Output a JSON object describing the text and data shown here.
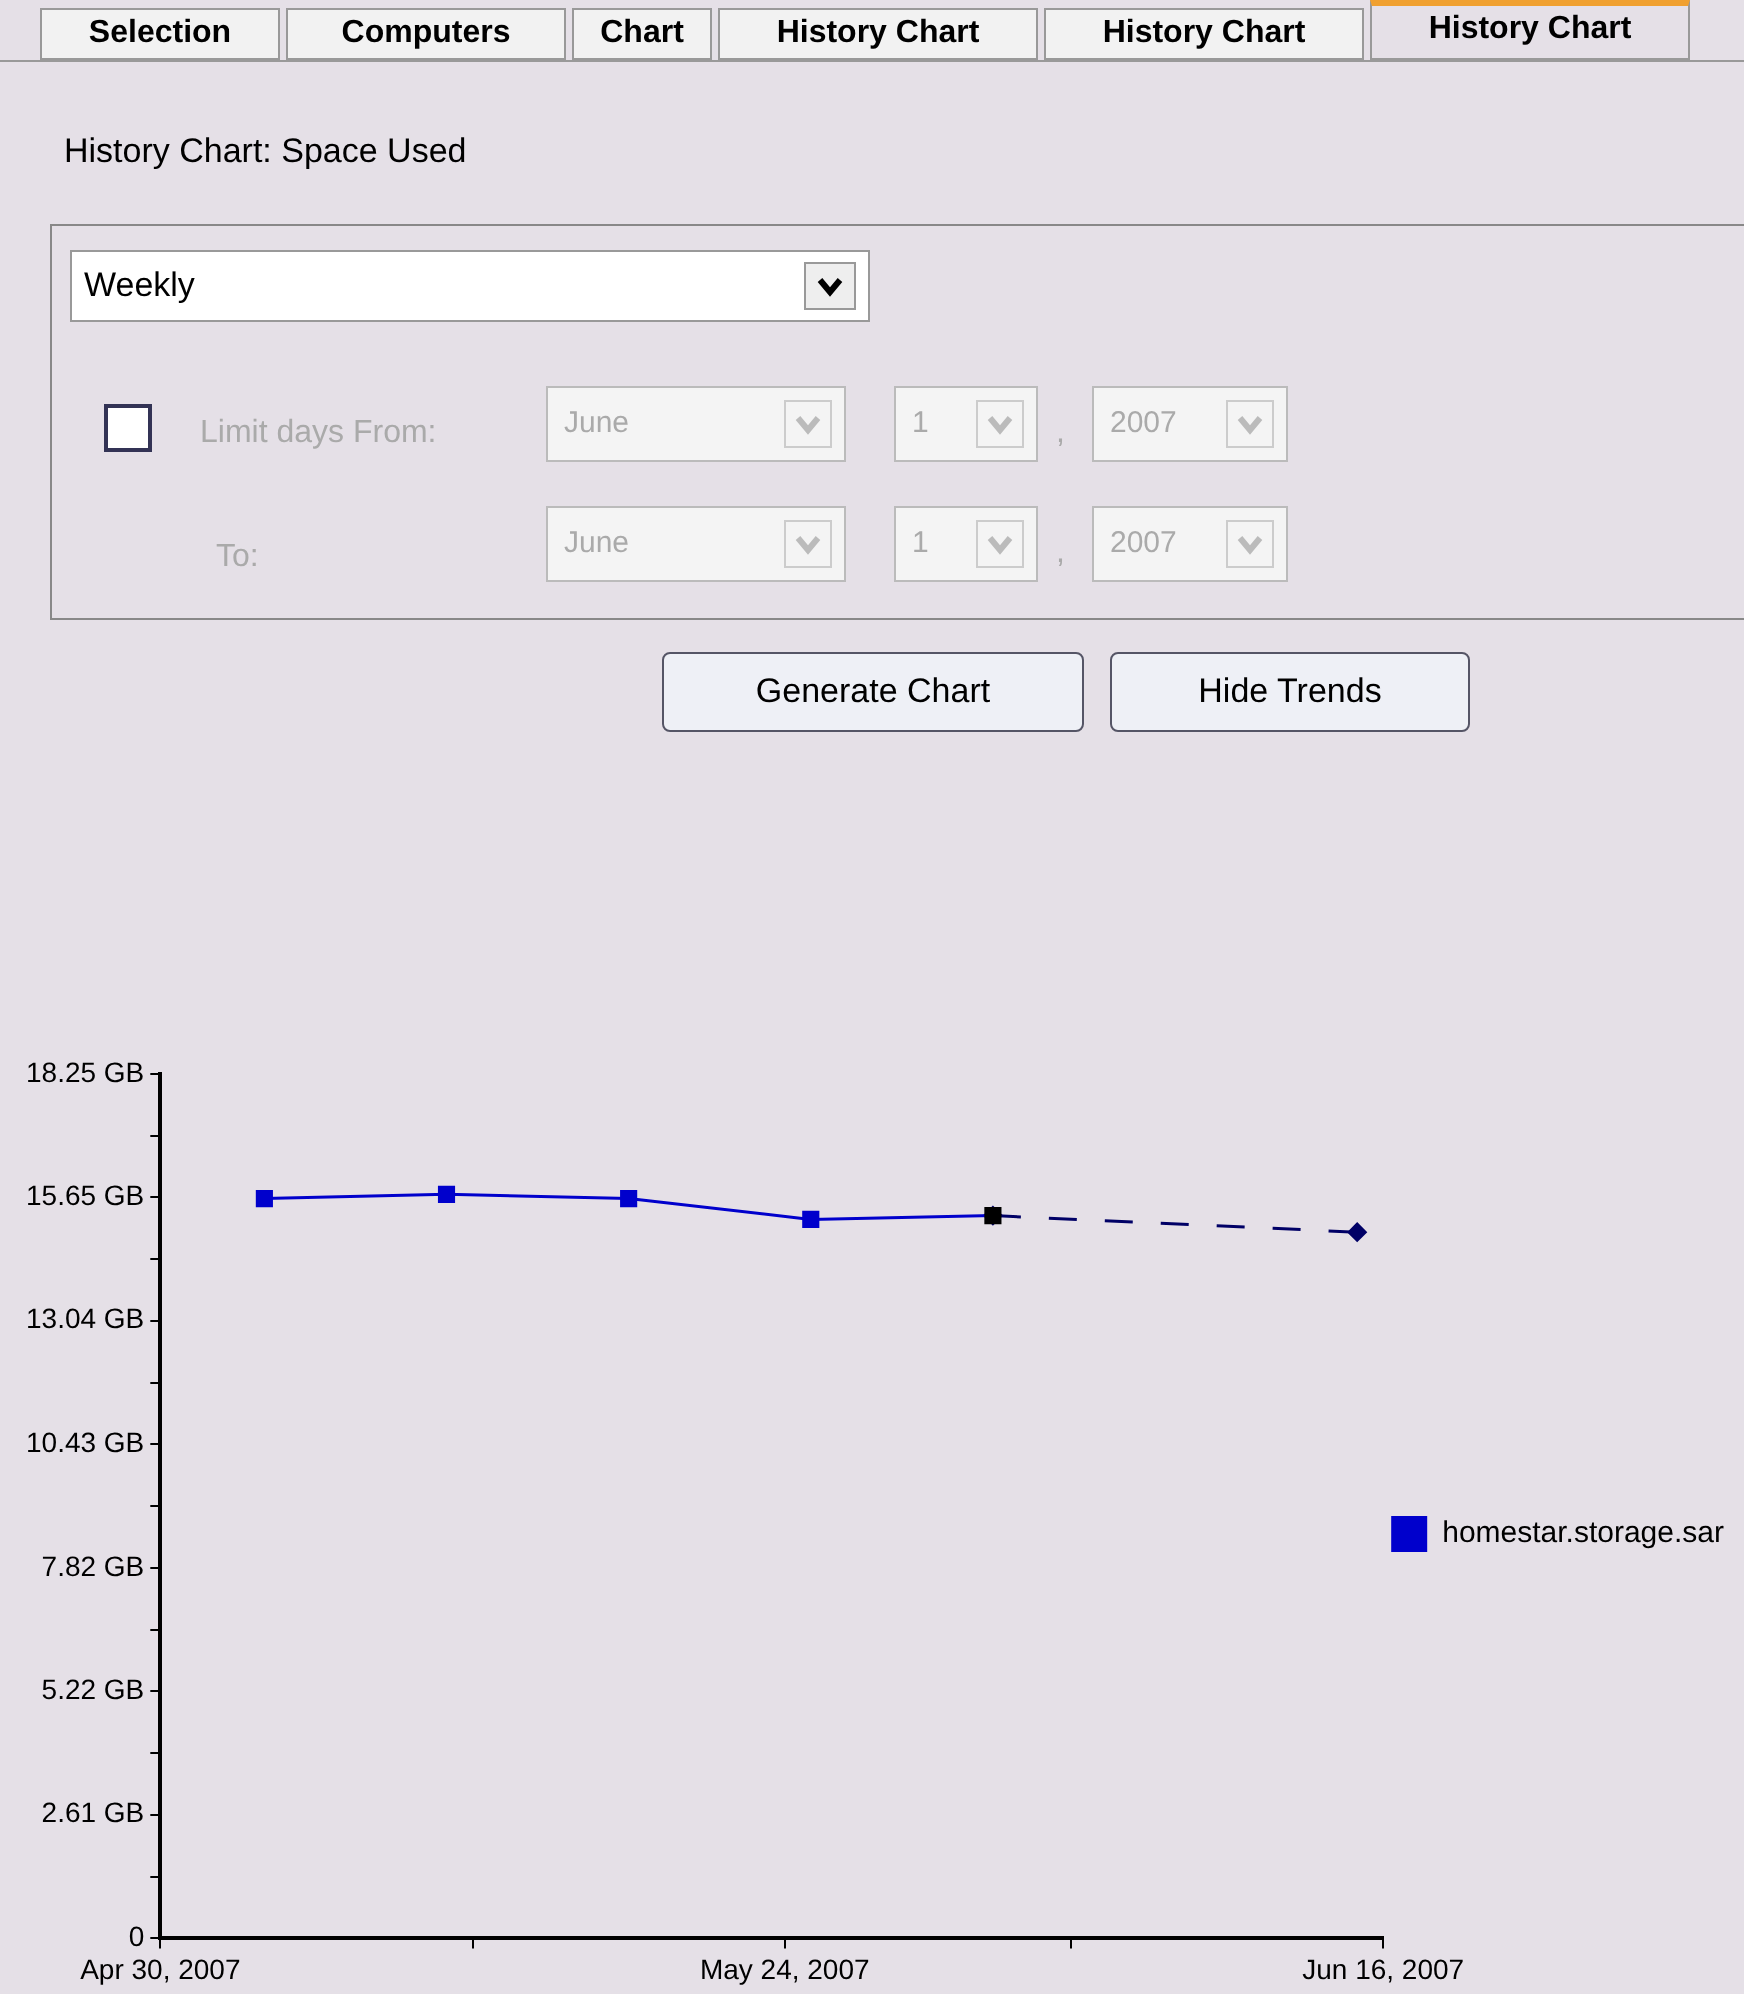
{
  "chart_data": {
    "type": "line",
    "title": "History Chart: Space Used",
    "annotations": [
      "Selection",
      "Computers",
      "Chart",
      "History Chart",
      "History Chart",
      "History Chart",
      "Weekly",
      "Limit days From:",
      "June",
      "1",
      "2007",
      "To:",
      "June",
      "1",
      "2007",
      "Generate Chart",
      "Hide Trends",
      ","
    ],
    "x": [
      "2007-05-04",
      "2007-05-11",
      "2007-05-18",
      "2007-05-25",
      "2007-06-01"
    ],
    "series": [
      {
        "name": "homestar.storage.sar",
        "color": "#0000cc",
        "colors": [
          "#0000cc",
          "#0000cc",
          "#0000cc",
          "#0000cc",
          "#000000"
        ],
        "values": [
          15.62,
          15.71,
          15.62,
          15.18,
          15.26
        ]
      },
      {
        "type": "line",
        "color": "#000066",
        "x": [
          "2007-06-01",
          "2007-06-15"
        ],
        "values": [
          15.26,
          14.91
        ],
        "line_style": "dashed",
        "marker": "diamond"
      }
    ],
    "marker": "square",
    "line_style": "solid",
    "xlim": [
      "2007-04-30",
      "2007-06-16"
    ],
    "xticks": [
      {
        "value": "2007-04-30",
        "label": "Apr 30, 2007"
      },
      {
        "value": "2007-05-12",
        "label": null
      },
      {
        "value": "2007-05-24",
        "label": "May 24, 2007"
      },
      {
        "value": "2007-06-04",
        "label": null
      },
      {
        "value": "2007-06-16",
        "label": "Jun 16, 2007"
      }
    ],
    "ylim": [
      0,
      18.25
    ],
    "yticks": [
      0,
      {
        "value": 1.305,
        "label": null
      },
      {
        "value": 2.61,
        "label": "2.61 GB"
      },
      {
        "value": 3.915,
        "label": null
      },
      {
        "value": 5.22,
        "label": "5.22 GB"
      },
      {
        "value": 6.52,
        "label": null
      },
      {
        "value": 7.82,
        "label": "7.82 GB"
      },
      {
        "value": 9.125,
        "label": null
      },
      {
        "value": 10.43,
        "label": "10.43 GB"
      },
      {
        "value": 11.735,
        "label": null
      },
      {
        "value": 13.04,
        "label": "13.04 GB"
      },
      {
        "value": 14.345,
        "label": null
      },
      {
        "value": 15.65,
        "label": "15.65 GB"
      },
      {
        "value": 16.95,
        "label": null
      },
      {
        "value": 18.25,
        "label": "18.25 GB"
      }
    ],
    "grid": false,
    "legend": "right"
  }
}
